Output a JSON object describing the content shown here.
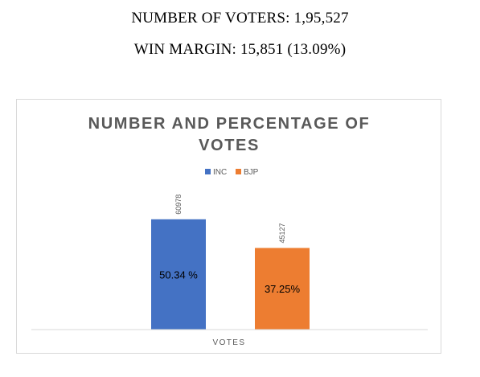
{
  "header": {
    "voters_line": "NUMBER OF VOTERS: 1,95,527",
    "margin_line": "WIN MARGIN: 15,851 (13.09%)"
  },
  "chart_data": {
    "type": "bar",
    "title_lines": [
      "NUMBER AND PERCENTAGE OF",
      "VOTES"
    ],
    "categories": [
      "VOTES"
    ],
    "xlabel": "VOTES",
    "ylabel": "",
    "ylim": [
      0,
      80000
    ],
    "grid": false,
    "legend_position": "top",
    "series": [
      {
        "name": "INC",
        "values": [
          60978
        ],
        "percent_label": "50.34 %",
        "color": "#4472c4"
      },
      {
        "name": "BJP",
        "values": [
          45127
        ],
        "percent_label": "37.25%",
        "color": "#ed7d31"
      }
    ]
  }
}
